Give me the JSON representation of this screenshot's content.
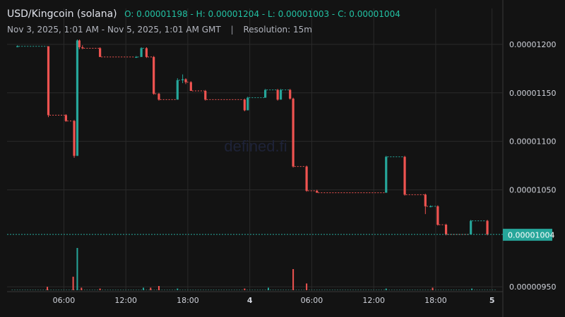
{
  "header": {
    "symbol": "USD/Kingcoin (solana)",
    "ohlc": "O: 0.00001198 - H: 0.00001204 - L: 0.00001003 - C: 0.00001004",
    "range": "Nov 3, 2025, 1:01 AM - Nov 5, 2025, 1:01 AM GMT",
    "separator": "|",
    "resolution": "Resolution: 15m"
  },
  "watermark": "defined.fi",
  "colors": {
    "background": "#131313",
    "up": "#26a69a",
    "down": "#ef5350",
    "grid": "#2a2a2a",
    "price_label_bg": "#26a69a"
  },
  "chart_data": {
    "type": "candlestick",
    "x_ticks": [
      "06:00",
      "12:00",
      "18:00",
      "4",
      "06:00",
      "12:00",
      "18:00",
      "5"
    ],
    "y_ticks": [
      "0.00001200",
      "0.00001150",
      "0.00001100",
      "0.00001050",
      "0.00000950"
    ],
    "ylim": [
      9.45e-06,
      1.237e-05
    ],
    "last_price": 1.004e-05,
    "last_price_label": "0.00001004",
    "grid": true,
    "candles": [
      {
        "x": 1.0,
        "o": 1.198e-05,
        "h": 1.199e-05,
        "l": 1.197e-05,
        "c": 1.198e-05
      },
      {
        "x": 4.0,
        "o": 1.198e-05,
        "h": 1.198e-05,
        "l": 1.125e-05,
        "c": 1.127e-05
      },
      {
        "x": 5.7,
        "o": 1.127e-05,
        "h": 1.128e-05,
        "l": 1.12e-05,
        "c": 1.121e-05
      },
      {
        "x": 6.5,
        "o": 1.121e-05,
        "h": 1.122e-05,
        "l": 1.083e-05,
        "c": 1.085e-05
      },
      {
        "x": 6.8,
        "o": 1.085e-05,
        "h": 1.205e-05,
        "l": 1.085e-05,
        "c": 1.204e-05
      },
      {
        "x": 7.0,
        "o": 1.204e-05,
        "h": 1.205e-05,
        "l": 1.195e-05,
        "c": 1.197e-05
      },
      {
        "x": 7.3,
        "o": 1.197e-05,
        "h": 1.199e-05,
        "l": 1.195e-05,
        "c": 1.196e-05
      },
      {
        "x": 9.0,
        "o": 1.196e-05,
        "h": 1.197e-05,
        "l": 1.187e-05,
        "c": 1.187e-05
      },
      {
        "x": 12.5,
        "o": 1.187e-05,
        "h": 1.188e-05,
        "l": 1.186e-05,
        "c": 1.187e-05
      },
      {
        "x": 13.0,
        "o": 1.187e-05,
        "h": 1.197e-05,
        "l": 1.187e-05,
        "c": 1.196e-05
      },
      {
        "x": 13.5,
        "o": 1.196e-05,
        "h": 1.197e-05,
        "l": 1.186e-05,
        "c": 1.187e-05
      },
      {
        "x": 14.2,
        "o": 1.187e-05,
        "h": 1.188e-05,
        "l": 1.148e-05,
        "c": 1.149e-05
      },
      {
        "x": 14.7,
        "o": 1.149e-05,
        "h": 1.15e-05,
        "l": 1.142e-05,
        "c": 1.143e-05
      },
      {
        "x": 16.5,
        "o": 1.143e-05,
        "h": 1.165e-05,
        "l": 1.143e-05,
        "c": 1.163e-05
      },
      {
        "x": 17.0,
        "o": 1.163e-05,
        "h": 1.169e-05,
        "l": 1.16e-05,
        "c": 1.164e-05
      },
      {
        "x": 17.3,
        "o": 1.164e-05,
        "h": 1.165e-05,
        "l": 1.159e-05,
        "c": 1.161e-05
      },
      {
        "x": 17.8,
        "o": 1.161e-05,
        "h": 1.162e-05,
        "l": 1.152e-05,
        "c": 1.152e-05
      },
      {
        "x": 19.2,
        "o": 1.152e-05,
        "h": 1.153e-05,
        "l": 1.142e-05,
        "c": 1.143e-05
      },
      {
        "x": 23.0,
        "o": 1.143e-05,
        "h": 1.144e-05,
        "l": 1.131e-05,
        "c": 1.132e-05
      },
      {
        "x": 23.3,
        "o": 1.132e-05,
        "h": 1.146e-05,
        "l": 1.132e-05,
        "c": 1.145e-05
      },
      {
        "x": 25.0,
        "o": 1.145e-05,
        "h": 1.154e-05,
        "l": 1.145e-05,
        "c": 1.153e-05
      },
      {
        "x": 26.2,
        "o": 1.153e-05,
        "h": 1.154e-05,
        "l": 1.142e-05,
        "c": 1.143e-05
      },
      {
        "x": 26.5,
        "o": 1.143e-05,
        "h": 1.154e-05,
        "l": 1.143e-05,
        "c": 1.153e-05
      },
      {
        "x": 27.4,
        "o": 1.153e-05,
        "h": 1.154e-05,
        "l": 1.143e-05,
        "c": 1.144e-05
      },
      {
        "x": 27.7,
        "o": 1.144e-05,
        "h": 1.145e-05,
        "l": 1.073e-05,
        "c": 1.074e-05
      },
      {
        "x": 29.0,
        "o": 1.074e-05,
        "h": 1.075e-05,
        "l": 1.048e-05,
        "c": 1.049e-05
      },
      {
        "x": 30.0,
        "o": 1.049e-05,
        "h": 1.05e-05,
        "l": 1.047e-05,
        "c": 1.047e-05
      },
      {
        "x": 36.7,
        "o": 1.047e-05,
        "h": 1.085e-05,
        "l": 1.047e-05,
        "c": 1.084e-05
      },
      {
        "x": 38.5,
        "o": 1.084e-05,
        "h": 1.085e-05,
        "l": 1.044e-05,
        "c": 1.045e-05
      },
      {
        "x": 40.5,
        "o": 1.045e-05,
        "h": 1.046e-05,
        "l": 1.025e-05,
        "c": 1.033e-05
      },
      {
        "x": 41.0,
        "o": 1.033e-05,
        "h": 1.034e-05,
        "l": 1.032e-05,
        "c": 1.033e-05
      },
      {
        "x": 41.7,
        "o": 1.033e-05,
        "h": 1.034e-05,
        "l": 1.013e-05,
        "c": 1.014e-05
      },
      {
        "x": 42.5,
        "o": 1.014e-05,
        "h": 1.015e-05,
        "l": 1.003e-05,
        "c": 1.004e-05
      },
      {
        "x": 44.9,
        "o": 1.004e-05,
        "h": 1.019e-05,
        "l": 1.004e-05,
        "c": 1.018e-05
      },
      {
        "x": 46.5,
        "o": 1.018e-05,
        "h": 1.019e-05,
        "l": 1.003e-05,
        "c": 1.004e-05
      }
    ],
    "volume": [
      {
        "x": 3.9,
        "v": 4,
        "dir": "down"
      },
      {
        "x": 6.4,
        "v": 16,
        "dir": "down"
      },
      {
        "x": 6.8,
        "v": 50,
        "dir": "up"
      },
      {
        "x": 7.2,
        "v": 3,
        "dir": "down"
      },
      {
        "x": 9.0,
        "v": 2,
        "dir": "down"
      },
      {
        "x": 13.2,
        "v": 3,
        "dir": "up"
      },
      {
        "x": 13.9,
        "v": 3,
        "dir": "down"
      },
      {
        "x": 14.7,
        "v": 5,
        "dir": "down"
      },
      {
        "x": 16.5,
        "v": 2,
        "dir": "up"
      },
      {
        "x": 23.0,
        "v": 2,
        "dir": "down"
      },
      {
        "x": 25.3,
        "v": 3,
        "dir": "up"
      },
      {
        "x": 27.7,
        "v": 25,
        "dir": "down"
      },
      {
        "x": 29.0,
        "v": 8,
        "dir": "down"
      },
      {
        "x": 36.7,
        "v": 2,
        "dir": "up"
      },
      {
        "x": 41.2,
        "v": 3,
        "dir": "down"
      },
      {
        "x": 45.0,
        "v": 2,
        "dir": "up"
      }
    ]
  }
}
